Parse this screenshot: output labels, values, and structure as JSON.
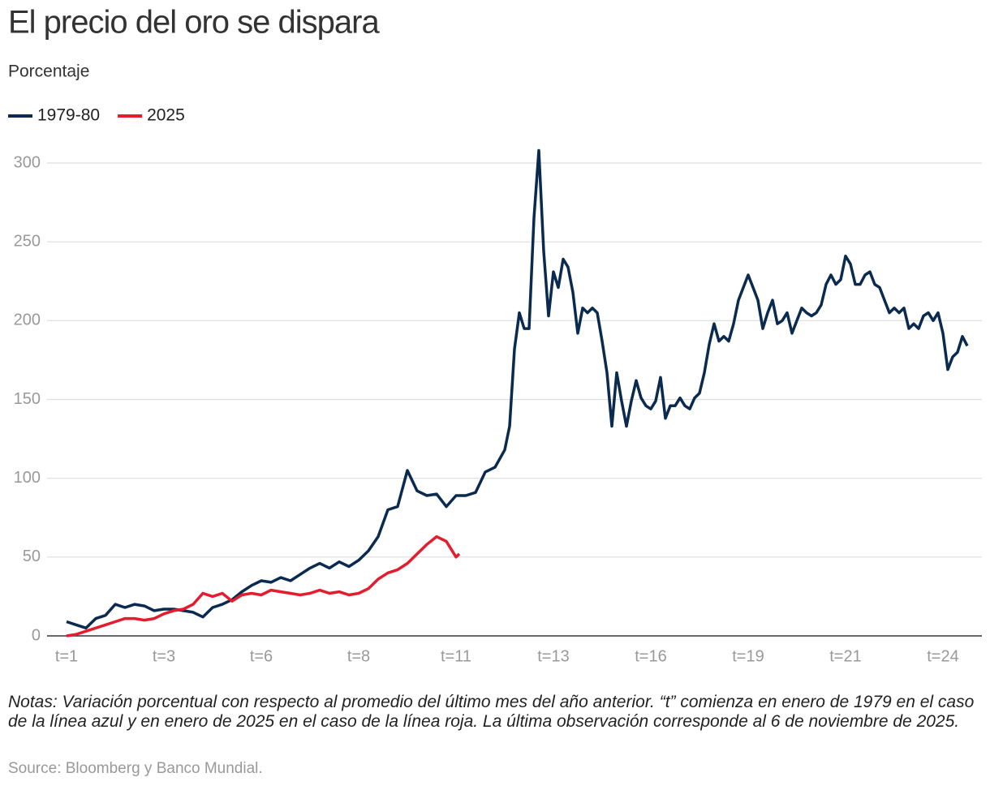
{
  "chart_data": {
    "type": "line",
    "title": "El precio del oro se dispara",
    "subtitle": "Porcentaje",
    "notes": "Notas: Variación porcentual con respecto al promedio del último mes del año anterior. “t” comienza en enero de 1979 en el caso de la línea azul y en enero de 2025 en el caso de la línea roja. La última observación corresponde al 6 de noviembre de 2025.",
    "source": "Source: Bloomberg y Banco Mundial.",
    "xlim": [
      1,
      24.5
    ],
    "xticks": [
      {
        "value": 1,
        "label": "t=1"
      },
      {
        "value": 3.5,
        "label": "t=3"
      },
      {
        "value": 6,
        "label": "t=6"
      },
      {
        "value": 8.5,
        "label": "t=8"
      },
      {
        "value": 11,
        "label": "t=11"
      },
      {
        "value": 13.5,
        "label": "t=13"
      },
      {
        "value": 16,
        "label": "t=16"
      },
      {
        "value": 18.5,
        "label": "t=19"
      },
      {
        "value": 21,
        "label": "t=21"
      },
      {
        "value": 23.5,
        "label": "t=24"
      }
    ],
    "ylim": [
      0,
      300
    ],
    "yticks": [
      0,
      50,
      100,
      150,
      200,
      250,
      300
    ],
    "grid": true,
    "legend": "top-left",
    "series": [
      {
        "name": "1979-80",
        "color": "#0b2a4f",
        "x": [
          1,
          1.25,
          1.5,
          1.75,
          2,
          2.25,
          2.5,
          2.75,
          3,
          3.25,
          3.5,
          3.75,
          4,
          4.25,
          4.5,
          4.75,
          5,
          5.25,
          5.5,
          5.75,
          6,
          6.25,
          6.5,
          6.75,
          7,
          7.25,
          7.5,
          7.75,
          8,
          8.25,
          8.5,
          8.75,
          9,
          9.25,
          9.5,
          9.75,
          10,
          10.25,
          10.5,
          10.75,
          11,
          11.25,
          11.5,
          11.75,
          12,
          12.25,
          12.375,
          12.5,
          12.625,
          12.75,
          12.875,
          13,
          13.125,
          13.25,
          13.375,
          13.5,
          13.625,
          13.75,
          13.875,
          14,
          14.125,
          14.25,
          14.375,
          14.5,
          14.625,
          14.75,
          14.875,
          15,
          15.125,
          15.25,
          15.375,
          15.5,
          15.625,
          15.75,
          15.875,
          16,
          16.125,
          16.25,
          16.375,
          16.5,
          16.625,
          16.75,
          16.875,
          17,
          17.125,
          17.25,
          17.375,
          17.5,
          17.625,
          17.75,
          17.875,
          18,
          18.125,
          18.25,
          18.375,
          18.5,
          18.625,
          18.75,
          18.875,
          19,
          19.125,
          19.25,
          19.375,
          19.5,
          19.625,
          19.75,
          19.875,
          20,
          20.125,
          20.25,
          20.375,
          20.5,
          20.625,
          20.75,
          20.875,
          21,
          21.125,
          21.25,
          21.375,
          21.5,
          21.625,
          21.75,
          21.875,
          22,
          22.125,
          22.25,
          22.375,
          22.5,
          22.625,
          22.75,
          22.875,
          23,
          23.125,
          23.25,
          23.375,
          23.5,
          23.625,
          23.75,
          23.875,
          24,
          24.125
        ],
        "values": [
          9,
          7,
          5,
          11,
          13,
          20,
          18,
          20,
          19,
          16,
          17,
          17,
          16,
          15,
          12,
          18,
          20,
          23,
          28,
          32,
          35,
          34,
          37,
          35,
          39,
          43,
          46,
          43,
          47,
          44,
          48,
          54,
          63,
          80,
          82,
          105,
          92,
          89,
          90,
          82,
          89,
          89,
          91,
          104,
          107,
          118,
          133,
          182,
          205,
          195,
          195,
          265,
          308,
          244,
          203,
          231,
          221,
          239,
          234,
          218,
          192,
          208,
          205,
          208,
          205,
          187,
          167,
          133,
          167,
          149,
          133,
          149,
          162,
          151,
          146,
          144,
          149,
          164,
          138,
          146,
          146,
          151,
          146,
          144,
          151,
          154,
          167,
          185,
          198,
          187,
          190,
          187,
          198,
          213,
          221,
          229,
          221,
          213,
          195,
          205,
          213,
          198,
          200,
          205,
          192,
          200,
          208,
          205,
          203,
          205,
          210,
          223,
          229,
          223,
          226,
          241,
          236,
          223,
          223,
          229,
          231,
          223,
          221,
          213,
          205,
          208,
          205,
          208,
          195,
          198,
          195,
          203,
          205,
          200,
          205,
          192,
          169,
          177,
          180,
          190,
          184
        ]
      },
      {
        "name": "2025",
        "color": "#e31d2e",
        "x": [
          1,
          1.25,
          1.5,
          1.75,
          2,
          2.25,
          2.5,
          2.75,
          3,
          3.25,
          3.5,
          3.75,
          4,
          4.25,
          4.5,
          4.75,
          5,
          5.25,
          5.5,
          5.75,
          6,
          6.25,
          6.5,
          6.75,
          7,
          7.25,
          7.5,
          7.75,
          8,
          8.25,
          8.5,
          8.75,
          9,
          9.25,
          9.5,
          9.75,
          10,
          10.25,
          10.5,
          10.75,
          11,
          11.083
        ],
        "values": [
          0,
          1,
          3,
          5,
          7,
          9,
          11,
          11,
          10,
          11,
          14,
          16,
          17,
          20,
          27,
          25,
          27,
          22,
          26,
          27,
          26,
          29,
          28,
          27,
          26,
          27,
          29,
          27,
          28,
          26,
          27,
          30,
          36,
          40,
          42,
          46,
          52,
          58,
          63,
          60,
          50,
          52
        ]
      }
    ]
  }
}
